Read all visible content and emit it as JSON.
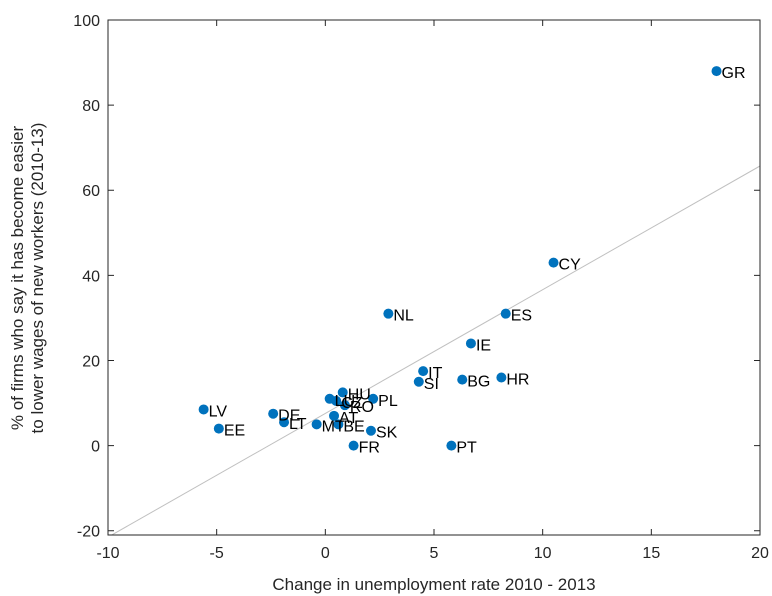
{
  "chart_data": {
    "type": "scatter",
    "xlabel": "Change in unemployment rate 2010 - 2013",
    "ylabel_lines": [
      "% of firms who say it has become easier",
      "to lower wages of new workers (2010-13)"
    ],
    "xlim": [
      -10,
      20
    ],
    "ylim": [
      -21,
      100
    ],
    "xticks": [
      -10,
      -5,
      0,
      5,
      10,
      15,
      20
    ],
    "yticks": [
      -20,
      0,
      20,
      40,
      60,
      80,
      100
    ],
    "grid": false,
    "colors": {
      "point": "#0072BD",
      "fit_line": "#c0c0c0",
      "axis": "#262626"
    },
    "fit_line": {
      "x": [
        -10,
        20
      ],
      "y": [
        -21.5,
        65.7
      ]
    },
    "points": [
      {
        "label": "GR",
        "x": 18.0,
        "y": 88.0
      },
      {
        "label": "CY",
        "x": 10.5,
        "y": 43.0
      },
      {
        "label": "ES",
        "x": 8.3,
        "y": 31.0
      },
      {
        "label": "NL",
        "x": 2.9,
        "y": 31.0
      },
      {
        "label": "IE",
        "x": 6.7,
        "y": 24.0
      },
      {
        "label": "IT",
        "x": 4.5,
        "y": 17.5
      },
      {
        "label": "SI",
        "x": 4.3,
        "y": 15.0
      },
      {
        "label": "BG",
        "x": 6.3,
        "y": 15.5
      },
      {
        "label": "HR",
        "x": 8.1,
        "y": 16.0
      },
      {
        "label": "HU",
        "x": 0.8,
        "y": 12.5
      },
      {
        "label": "PL",
        "x": 2.2,
        "y": 11.0
      },
      {
        "label": "LU",
        "x": 0.2,
        "y": 11.0
      },
      {
        "label": "CZ",
        "x": 0.5,
        "y": 10.5
      },
      {
        "label": "RO",
        "x": 0.9,
        "y": 9.5
      },
      {
        "label": "AT",
        "x": 0.4,
        "y": 7.0
      },
      {
        "label": "LV",
        "x": -5.6,
        "y": 8.5
      },
      {
        "label": "DE",
        "x": -2.4,
        "y": 7.5
      },
      {
        "label": "LT",
        "x": -1.9,
        "y": 5.5
      },
      {
        "label": "MT",
        "x": -0.4,
        "y": 5.0
      },
      {
        "label": "BE",
        "x": 0.6,
        "y": 5.0
      },
      {
        "label": "EE",
        "x": -4.9,
        "y": 4.0
      },
      {
        "label": "SK",
        "x": 2.1,
        "y": 3.5
      },
      {
        "label": "FR",
        "x": 1.3,
        "y": 0.0
      },
      {
        "label": "PT",
        "x": 5.8,
        "y": 0.0
      }
    ]
  }
}
